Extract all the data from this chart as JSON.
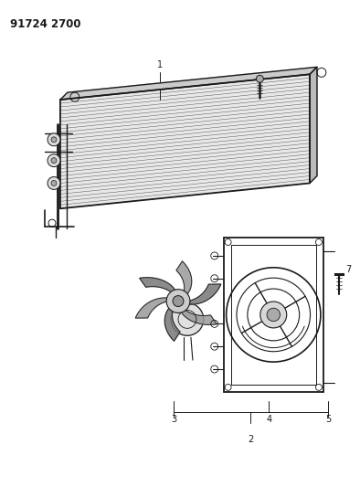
{
  "title": "91724 2700",
  "background_color": "#ffffff",
  "line_color": "#1a1a1a",
  "fig_width": 3.94,
  "fig_height": 5.33,
  "dpi": 100
}
